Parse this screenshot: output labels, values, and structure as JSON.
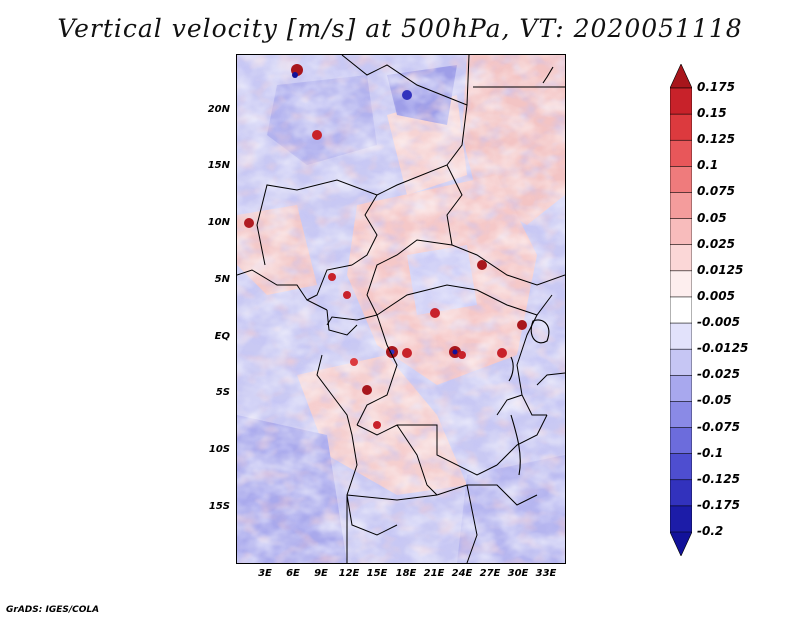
{
  "title": "Vertical velocity [m/s] at 500hPa, VT: 2020051118",
  "y_axis_labels": [
    "20N",
    "15N",
    "10N",
    "5N",
    "EQ",
    "5S",
    "10S",
    "15S"
  ],
  "x_axis_labels": [
    "3E",
    "6E",
    "9E",
    "12E",
    "15E",
    "18E",
    "21E",
    "24E",
    "27E",
    "30E",
    "33E"
  ],
  "colorbar": {
    "levels": [
      "0.175",
      "0.15",
      "0.125",
      "0.1",
      "0.075",
      "0.05",
      "0.025",
      "0.0125",
      "0.005",
      "-0.005",
      "-0.0125",
      "-0.025",
      "-0.05",
      "-0.075",
      "-0.1",
      "-0.125",
      "-0.175",
      "-0.2"
    ],
    "colors": [
      "#a8161c",
      "#c8222a",
      "#dc3a3e",
      "#e8575a",
      "#ef7b7c",
      "#f49c9c",
      "#f8bcbc",
      "#fbd7d7",
      "#fdeeee",
      "#ffffff",
      "#e2e2fb",
      "#c6c6f4",
      "#a8a8ee",
      "#8a8ae6",
      "#6c6cdc",
      "#4e4ed0",
      "#3232bd",
      "#1c1ca8",
      "#12129a"
    ]
  },
  "credit": "GrADS: IGES/COLA"
}
